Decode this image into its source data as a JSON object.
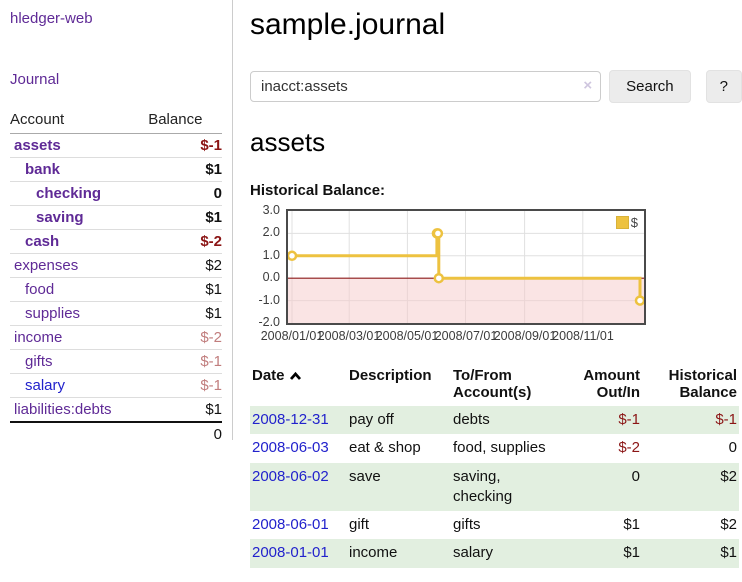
{
  "app": {
    "title": "hledger-web",
    "nav_journal": "Journal"
  },
  "sidebar": {
    "table": {
      "col_account": "Account",
      "col_balance": "Balance",
      "rows": [
        {
          "account": "assets",
          "indent": 1,
          "bold": true,
          "balance": "$-1",
          "balance_style": "neg"
        },
        {
          "account": "bank",
          "indent": 2,
          "bold": true,
          "balance": "$1",
          "balance_style": ""
        },
        {
          "account": "checking",
          "indent": 3,
          "bold": true,
          "balance": "0",
          "balance_style": ""
        },
        {
          "account": "saving",
          "indent": 3,
          "bold": true,
          "balance": "$1",
          "balance_style": ""
        },
        {
          "account": "cash",
          "indent": 2,
          "bold": true,
          "balance": "$-2",
          "balance_style": "neg"
        },
        {
          "account": "expenses",
          "indent": 1,
          "bold": false,
          "balance": "$2",
          "balance_style": ""
        },
        {
          "account": "food",
          "indent": 2,
          "bold": false,
          "balance": "$1",
          "balance_style": ""
        },
        {
          "account": "supplies",
          "indent": 2,
          "bold": false,
          "balance": "$1",
          "balance_style": ""
        },
        {
          "account": "income",
          "indent": 1,
          "bold": false,
          "balance": "$-2",
          "balance_style": "neg-pale"
        },
        {
          "account": "gifts",
          "indent": 2,
          "bold": false,
          "balance": "$-1",
          "balance_style": "neg-pale"
        },
        {
          "account": "salary",
          "indent": 2,
          "bold": false,
          "balance": "$-1",
          "balance_style": "neg-pale",
          "link_style": "blue"
        },
        {
          "account": "liabilities:debts",
          "indent": 1,
          "bold": false,
          "balance": "$1",
          "balance_style": ""
        }
      ],
      "total": "0"
    }
  },
  "header": {
    "title": "sample.journal"
  },
  "search": {
    "query": "inacct:assets",
    "clear_icon": "×",
    "button": "Search",
    "help_button": "?"
  },
  "account_page": {
    "heading": "assets",
    "chart_label": "Historical Balance:"
  },
  "chart_data": {
    "type": "line",
    "style": "steps",
    "title": "Historical Balance",
    "series": [
      {
        "name": "$",
        "color": "#EDC240",
        "points": [
          [
            "2008-01-01",
            1
          ],
          [
            "2008-06-01",
            2
          ],
          [
            "2008-06-02",
            2
          ],
          [
            "2008-06-03",
            0
          ],
          [
            "2008-12-31",
            -1
          ]
        ]
      }
    ],
    "xlim": [
      "2008-01-01",
      "2008-12-31"
    ],
    "ylim": [
      -2,
      3
    ],
    "x_ticks": [
      "2008/01/01",
      "2008/03/01",
      "2008/05/01",
      "2008/07/01",
      "2008/09/01",
      "2008/11/01"
    ],
    "y_ticks": [
      3.0,
      2.0,
      1.0,
      0.0,
      -1.0,
      -2.0
    ],
    "grid": true,
    "legend_position": "top-right",
    "negative_fill": "#f6caca",
    "zero_line_color": "#8b1a1a"
  },
  "register": {
    "columns": {
      "date": "Date",
      "description": "Description",
      "accounts": "To/From Account(s)",
      "amount": "Amount Out/In",
      "balance": "Historical Balance"
    },
    "rows": [
      {
        "date": "2008-12-31",
        "description": "pay off",
        "accounts": "debts",
        "amount": "$-1",
        "amount_neg": true,
        "balance": "$-1",
        "balance_neg": true
      },
      {
        "date": "2008-06-03",
        "description": "eat & shop",
        "accounts": "food, supplies",
        "amount": "$-2",
        "amount_neg": true,
        "balance": "0",
        "balance_neg": false
      },
      {
        "date": "2008-06-02",
        "description": "save",
        "accounts": "saving, checking",
        "amount": "0",
        "amount_neg": false,
        "balance": "$2",
        "balance_neg": false
      },
      {
        "date": "2008-06-01",
        "description": "gift",
        "accounts": "gifts",
        "amount": "$1",
        "amount_neg": false,
        "balance": "$2",
        "balance_neg": false
      },
      {
        "date": "2008-01-01",
        "description": "income",
        "accounts": "salary",
        "amount": "$1",
        "amount_neg": false,
        "balance": "$1",
        "balance_neg": false
      }
    ]
  },
  "colors": {
    "link_purple": "#5f2a96",
    "link_blue": "#2222cc",
    "negative_strong": "#8b1515",
    "negative_pale": "#c17d7d",
    "row_green": "#e2efe0",
    "chart_line": "#EDC240",
    "chart_negative_fill": "#f6caca",
    "chart_zero_line": "#8b1a1a"
  }
}
